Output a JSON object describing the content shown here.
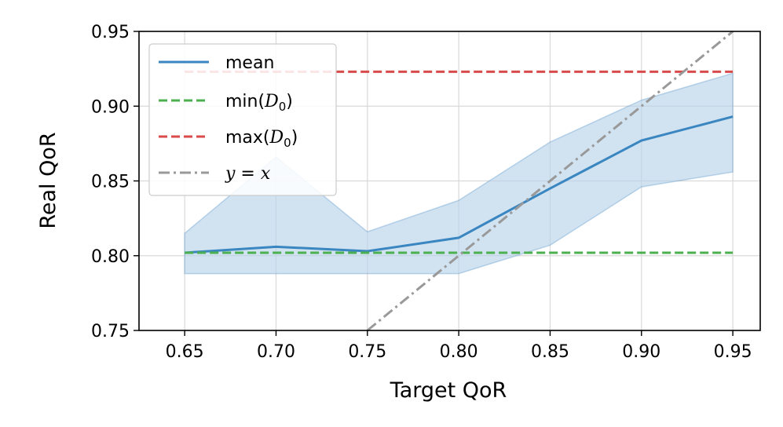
{
  "chart_data": {
    "type": "line",
    "xlabel": "Target QoR",
    "ylabel": "Real QoR",
    "xlim": [
      0.625,
      0.965
    ],
    "ylim": [
      0.75,
      0.95
    ],
    "x_ticks": [
      "0.65",
      "0.70",
      "0.75",
      "0.80",
      "0.85",
      "0.90",
      "0.95"
    ],
    "y_ticks": [
      "0.75",
      "0.80",
      "0.85",
      "0.90",
      "0.95"
    ],
    "grid": true,
    "legend_position": "top-left",
    "x": [
      0.65,
      0.7,
      0.75,
      0.8,
      0.85,
      0.9,
      0.95
    ],
    "series": [
      {
        "name": "mean",
        "style": "solid",
        "color": "#3a86c0",
        "values": [
          0.802,
          0.806,
          0.803,
          0.812,
          0.845,
          0.877,
          0.893
        ],
        "band_low": [
          0.788,
          0.788,
          0.788,
          0.788,
          0.807,
          0.846,
          0.856
        ],
        "band_high": [
          0.815,
          0.866,
          0.816,
          0.837,
          0.876,
          0.904,
          0.922
        ],
        "band_color": "#b9d3e9"
      },
      {
        "name": "min(",
        "name_sub": "D",
        "name_index": "0",
        "name_end": ")",
        "style": "dashed",
        "color": "#4caf50",
        "constant": 0.802
      },
      {
        "name": "max(",
        "name_sub": "D",
        "name_index": "0",
        "name_end": ")",
        "style": "dashed",
        "color": "#d94a4a",
        "constant": 0.923
      },
      {
        "name": "y = x",
        "name_y": "y",
        "name_eq": " = ",
        "name_x": "x",
        "style": "dash-dot",
        "color": "#999999",
        "identity": true
      }
    ]
  }
}
